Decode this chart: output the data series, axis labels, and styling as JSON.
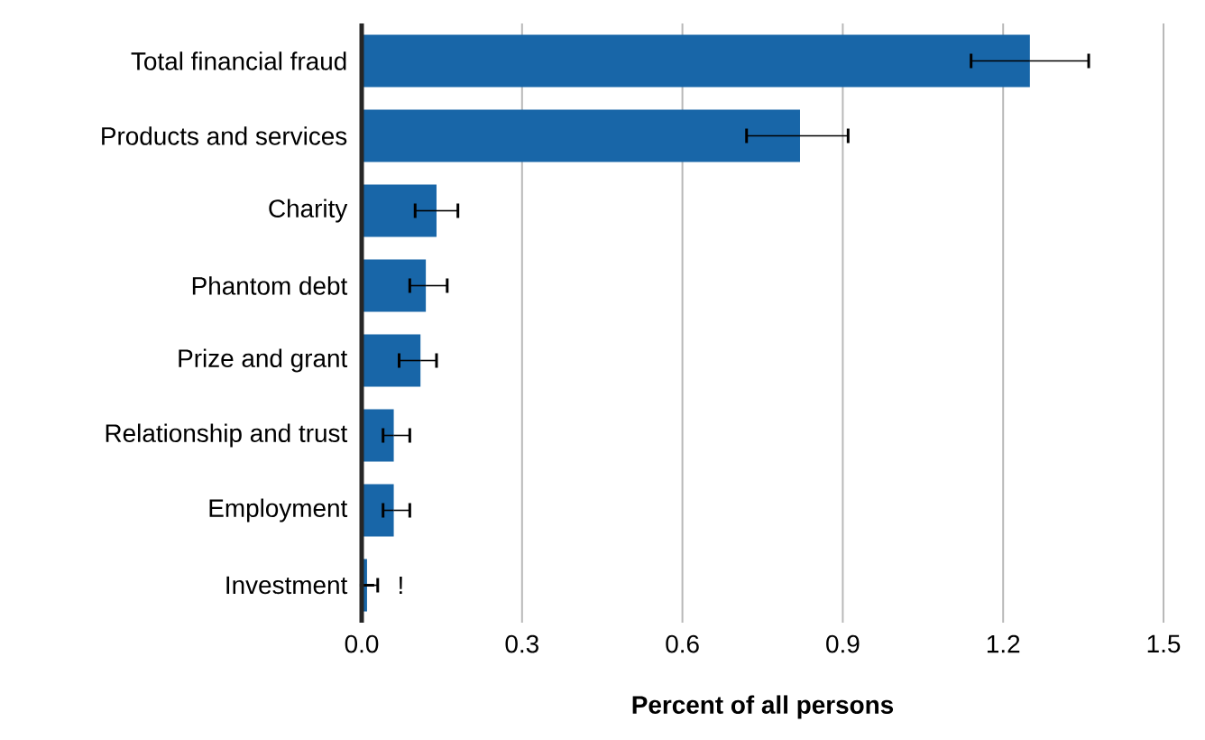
{
  "chart_data": {
    "type": "bar",
    "orientation": "horizontal",
    "categories": [
      "Total financial fraud",
      "Products and services",
      "Charity",
      "Phantom debt",
      "Prize and grant",
      "Relationship and trust",
      "Employment",
      "Investment"
    ],
    "values": [
      1.25,
      0.82,
      0.14,
      0.12,
      0.11,
      0.06,
      0.06,
      0.01
    ],
    "color": "#1866a8",
    "errors": [
      [
        1.14,
        1.36
      ],
      [
        0.72,
        0.91
      ],
      [
        0.1,
        0.18
      ],
      [
        0.09,
        0.16
      ],
      [
        0.07,
        0.14
      ],
      [
        0.04,
        0.09
      ],
      [
        0.04,
        0.09
      ],
      [
        0.01,
        0.03
      ]
    ],
    "xlabel": "Percent of all persons",
    "xlim": [
      0,
      1.5
    ],
    "xticks": [
      {
        "value": 0,
        "label": "0.0"
      },
      0.3,
      0.6,
      0.9,
      1.2,
      1.5
    ],
    "grid": "x",
    "annotations": [
      "!"
    ]
  }
}
